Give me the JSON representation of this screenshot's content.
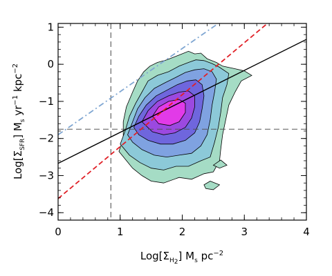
{
  "chart_data": {
    "type": "contour",
    "xlim": [
      0,
      4
    ],
    "ylim": [
      -4.2,
      1.1
    ],
    "x_ticks": [
      0,
      1,
      2,
      3,
      4
    ],
    "y_ticks": [
      -4,
      -3,
      -2,
      -1,
      0,
      1
    ],
    "x_tick_labels": [
      "0",
      "1",
      "2",
      "3",
      "4"
    ],
    "y_tick_labels": [
      "−4",
      "−3",
      "−2",
      "−1",
      "0",
      "1"
    ],
    "xlabel": {
      "prefix": "Log[Σ",
      "sub": "H",
      "subsub": "2",
      "suffix": "] M",
      "unit_sub": "s",
      "unit": " pc",
      "unit_sup": "−2"
    },
    "ylabel": {
      "prefix": "Log[Σ",
      "sub": "SFR",
      "suffix": "] M",
      "unit_sub": "s",
      "unit": " yr",
      "unit_sup1": "−1",
      "unit2": " kpc",
      "unit_sup2": "−2"
    },
    "contour_levels": [
      {
        "level": 1,
        "color": "#a5dcc5",
        "points": [
          [
            0.98,
            -2.35
          ],
          [
            1.05,
            -2.0
          ],
          [
            1.05,
            -1.55
          ],
          [
            1.1,
            -1.15
          ],
          [
            1.2,
            -0.75
          ],
          [
            1.28,
            -0.45
          ],
          [
            1.38,
            -0.2
          ],
          [
            1.48,
            -0.05
          ],
          [
            1.6,
            0.05
          ],
          [
            1.75,
            0.12
          ],
          [
            1.95,
            0.25
          ],
          [
            2.1,
            0.35
          ],
          [
            2.2,
            0.28
          ],
          [
            2.3,
            0.3
          ],
          [
            2.4,
            0.15
          ],
          [
            2.55,
            0.05
          ],
          [
            2.65,
            -0.05
          ],
          [
            2.85,
            -0.12
          ],
          [
            3.0,
            -0.18
          ],
          [
            3.12,
            -0.3
          ],
          [
            2.95,
            -0.45
          ],
          [
            2.85,
            -0.75
          ],
          [
            2.75,
            -1.1
          ],
          [
            2.7,
            -1.5
          ],
          [
            2.65,
            -1.9
          ],
          [
            2.62,
            -2.3
          ],
          [
            2.6,
            -2.6
          ],
          [
            2.5,
            -2.9
          ],
          [
            2.35,
            -2.95
          ],
          [
            2.15,
            -3.1
          ],
          [
            1.95,
            -3.05
          ],
          [
            1.7,
            -3.2
          ],
          [
            1.5,
            -3.15
          ],
          [
            1.35,
            -3.0
          ],
          [
            1.2,
            -2.8
          ]
        ]
      },
      {
        "level": 2,
        "color": "#8cc9d8",
        "points": [
          [
            1.0,
            -2.15
          ],
          [
            1.08,
            -1.8
          ],
          [
            1.15,
            -1.4
          ],
          [
            1.25,
            -1.05
          ],
          [
            1.35,
            -0.75
          ],
          [
            1.45,
            -0.45
          ],
          [
            1.6,
            -0.3
          ],
          [
            1.78,
            -0.2
          ],
          [
            1.95,
            -0.05
          ],
          [
            2.1,
            0.05
          ],
          [
            2.22,
            0.12
          ],
          [
            2.35,
            0.1
          ],
          [
            2.48,
            0.02
          ],
          [
            2.6,
            -0.08
          ],
          [
            2.75,
            -0.25
          ],
          [
            2.72,
            -0.55
          ],
          [
            2.65,
            -0.9
          ],
          [
            2.62,
            -1.3
          ],
          [
            2.58,
            -1.7
          ],
          [
            2.52,
            -2.1
          ],
          [
            2.45,
            -2.5
          ],
          [
            2.3,
            -2.6
          ],
          [
            2.1,
            -2.75
          ],
          [
            1.9,
            -2.75
          ],
          [
            1.7,
            -2.85
          ],
          [
            1.5,
            -2.8
          ],
          [
            1.32,
            -2.65
          ],
          [
            1.15,
            -2.45
          ]
        ]
      },
      {
        "level": 3,
        "color": "#7fa2e1",
        "points": [
          [
            1.12,
            -1.9
          ],
          [
            1.2,
            -1.55
          ],
          [
            1.28,
            -1.2
          ],
          [
            1.4,
            -0.9
          ],
          [
            1.55,
            -0.65
          ],
          [
            1.72,
            -0.5
          ],
          [
            1.9,
            -0.35
          ],
          [
            2.05,
            -0.22
          ],
          [
            2.2,
            -0.15
          ],
          [
            2.35,
            -0.12
          ],
          [
            2.48,
            -0.2
          ],
          [
            2.55,
            -0.4
          ],
          [
            2.52,
            -0.75
          ],
          [
            2.48,
            -1.1
          ],
          [
            2.45,
            -1.5
          ],
          [
            2.4,
            -1.9
          ],
          [
            2.3,
            -2.2
          ],
          [
            2.15,
            -2.4
          ],
          [
            1.95,
            -2.45
          ],
          [
            1.75,
            -2.5
          ],
          [
            1.55,
            -2.45
          ],
          [
            1.35,
            -2.3
          ],
          [
            1.2,
            -2.1
          ]
        ]
      },
      {
        "level": 4,
        "color": "#6f66dd",
        "points": [
          [
            1.22,
            -1.7
          ],
          [
            1.3,
            -1.4
          ],
          [
            1.42,
            -1.1
          ],
          [
            1.58,
            -0.85
          ],
          [
            1.75,
            -0.7
          ],
          [
            1.92,
            -0.55
          ],
          [
            2.08,
            -0.45
          ],
          [
            2.22,
            -0.42
          ],
          [
            2.32,
            -0.55
          ],
          [
            2.35,
            -0.85
          ],
          [
            2.32,
            -1.2
          ],
          [
            2.28,
            -1.55
          ],
          [
            2.2,
            -1.85
          ],
          [
            2.05,
            -2.05
          ],
          [
            1.85,
            -2.15
          ],
          [
            1.65,
            -2.15
          ],
          [
            1.45,
            -2.05
          ],
          [
            1.3,
            -1.9
          ]
        ]
      },
      {
        "level": 5,
        "color": "#9b49e0",
        "points": [
          [
            1.35,
            -1.55
          ],
          [
            1.45,
            -1.25
          ],
          [
            1.6,
            -1.0
          ],
          [
            1.78,
            -0.85
          ],
          [
            1.95,
            -0.75
          ],
          [
            2.1,
            -0.72
          ],
          [
            2.2,
            -0.85
          ],
          [
            2.2,
            -1.15
          ],
          [
            2.15,
            -1.45
          ],
          [
            2.05,
            -1.7
          ],
          [
            1.88,
            -1.85
          ],
          [
            1.7,
            -1.9
          ],
          [
            1.52,
            -1.82
          ]
        ]
      },
      {
        "level": 6,
        "color": "#e23ae8",
        "points": [
          [
            1.52,
            -1.4
          ],
          [
            1.62,
            -1.15
          ],
          [
            1.78,
            -1.0
          ],
          [
            1.95,
            -0.95
          ],
          [
            2.05,
            -1.05
          ],
          [
            2.05,
            -1.3
          ],
          [
            1.95,
            -1.55
          ],
          [
            1.8,
            -1.65
          ],
          [
            1.62,
            -1.6
          ]
        ]
      }
    ],
    "contour_islands": [
      {
        "color": "#a5dcc5",
        "points": [
          [
            2.35,
            -3.25
          ],
          [
            2.45,
            -3.15
          ],
          [
            2.6,
            -3.25
          ],
          [
            2.5,
            -3.38
          ],
          [
            2.38,
            -3.35
          ]
        ]
      },
      {
        "color": "#a5dcc5",
        "points": [
          [
            2.5,
            -2.72
          ],
          [
            2.62,
            -2.58
          ],
          [
            2.72,
            -2.72
          ],
          [
            2.6,
            -2.8
          ]
        ]
      }
    ],
    "lines": [
      {
        "style": "solid",
        "color": "#000000",
        "x": [
          0,
          4
        ],
        "y": [
          -2.67,
          0.67
        ]
      },
      {
        "style": "dashed",
        "color": "#e01f26",
        "x": [
          0,
          4
        ],
        "y": [
          -3.62,
          1.98
        ]
      },
      {
        "style": "dashdot",
        "color": "#7fa6d2",
        "x": [
          0,
          4
        ],
        "y": [
          -1.9,
          2.75
        ]
      }
    ],
    "reference_lines": {
      "vertical_x": 0.85,
      "horizontal_y": -1.75,
      "color": "#555555"
    },
    "grid": false,
    "legend": "none"
  }
}
